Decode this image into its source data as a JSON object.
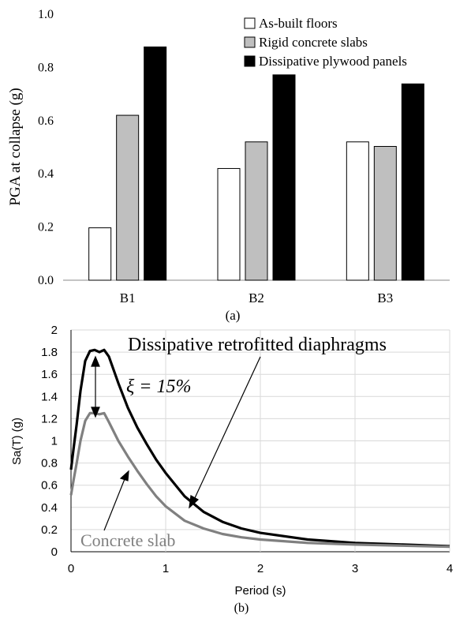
{
  "chart_data": [
    {
      "type": "bar",
      "caption": "(a)",
      "categories": [
        "B1",
        "B2",
        "B3"
      ],
      "series": [
        {
          "name": "As-built floors",
          "values": [
            0.197,
            0.42,
            0.52
          ],
          "color": "#ffffff"
        },
        {
          "name": "Rigid concrete slabs",
          "values": [
            0.62,
            0.52,
            0.503
          ],
          "color": "#bfbfbf"
        },
        {
          "name": "Dissipative plywood panels",
          "values": [
            0.877,
            0.772,
            0.738
          ],
          "color": "#000000"
        }
      ],
      "xlabel": "",
      "ylabel": "PGA at collapse (g)",
      "ylim": [
        0,
        1.0
      ],
      "yticks": [
        "0.0",
        "0.2",
        "0.4",
        "0.6",
        "0.8",
        "1.0"
      ],
      "grid": false,
      "legend_position": "top-right"
    },
    {
      "type": "line",
      "caption": "(b)",
      "xlabel": "Period (s)",
      "ylabel": "Sa(T) (g)",
      "xlim": [
        0,
        4
      ],
      "ylim": [
        0,
        2
      ],
      "xticks": [
        "0",
        "1",
        "2",
        "3",
        "4"
      ],
      "yticks": [
        "0",
        "0.2",
        "0.4",
        "0.6",
        "0.8",
        "1",
        "1.2",
        "1.4",
        "1.6",
        "1.8",
        "2"
      ],
      "grid": true,
      "series": [
        {
          "name": "Dissipative retrofitted diaphragms",
          "color": "#000000",
          "x": [
            0,
            0.03,
            0.06,
            0.1,
            0.15,
            0.2,
            0.25,
            0.3,
            0.35,
            0.4,
            0.5,
            0.6,
            0.7,
            0.8,
            0.9,
            1.0,
            1.2,
            1.4,
            1.6,
            1.8,
            2.0,
            2.5,
            3.0,
            3.5,
            4.0
          ],
          "y": [
            0.74,
            0.95,
            1.15,
            1.45,
            1.72,
            1.81,
            1.82,
            1.8,
            1.82,
            1.76,
            1.52,
            1.3,
            1.12,
            0.97,
            0.83,
            0.71,
            0.5,
            0.36,
            0.27,
            0.21,
            0.17,
            0.11,
            0.08,
            0.065,
            0.05
          ]
        },
        {
          "name": "Concrete slab",
          "color": "#808080",
          "x": [
            0,
            0.03,
            0.06,
            0.1,
            0.15,
            0.2,
            0.25,
            0.3,
            0.35,
            0.4,
            0.5,
            0.6,
            0.7,
            0.8,
            0.9,
            1.0,
            1.2,
            1.4,
            1.6,
            1.8,
            2.0,
            2.5,
            3.0,
            3.5,
            4.0
          ],
          "y": [
            0.51,
            0.66,
            0.8,
            1.0,
            1.18,
            1.25,
            1.25,
            1.24,
            1.25,
            1.17,
            1.0,
            0.86,
            0.73,
            0.61,
            0.5,
            0.41,
            0.28,
            0.21,
            0.16,
            0.13,
            0.11,
            0.08,
            0.065,
            0.055,
            0.045
          ]
        }
      ],
      "annotations": [
        {
          "text": "Dissipative retrofitted diaphragms",
          "points_to": "upper curve"
        },
        {
          "text": "ξ = 15%",
          "points_to": "gap between curves"
        },
        {
          "text": "Concrete slab",
          "points_to": "lower curve"
        }
      ]
    }
  ]
}
